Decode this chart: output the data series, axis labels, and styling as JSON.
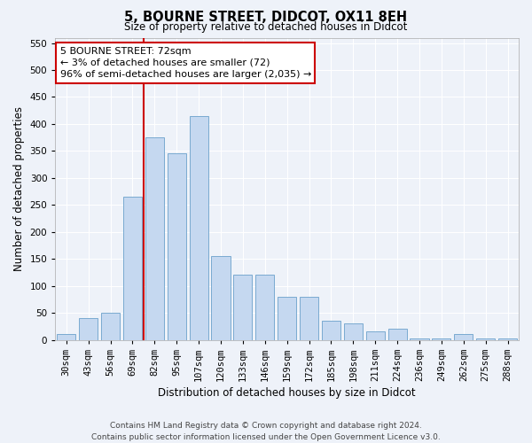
{
  "title": "5, BOURNE STREET, DIDCOT, OX11 8EH",
  "subtitle": "Size of property relative to detached houses in Didcot",
  "xlabel": "Distribution of detached houses by size in Didcot",
  "ylabel": "Number of detached properties",
  "categories": [
    "30sqm",
    "43sqm",
    "56sqm",
    "69sqm",
    "82sqm",
    "95sqm",
    "107sqm",
    "120sqm",
    "133sqm",
    "146sqm",
    "159sqm",
    "172sqm",
    "185sqm",
    "198sqm",
    "211sqm",
    "224sqm",
    "236sqm",
    "249sqm",
    "262sqm",
    "275sqm",
    "288sqm"
  ],
  "values": [
    10,
    40,
    50,
    265,
    375,
    345,
    415,
    155,
    120,
    120,
    80,
    80,
    35,
    30,
    15,
    20,
    3,
    3,
    10,
    2,
    2
  ],
  "bar_color": "#c5d8f0",
  "bar_edgecolor": "#7aaad0",
  "vline_x_index": 3.5,
  "vline_color": "#cc0000",
  "annotation_text": "5 BOURNE STREET: 72sqm\n← 3% of detached houses are smaller (72)\n96% of semi-detached houses are larger (2,035) →",
  "annotation_box_color": "#ffffff",
  "annotation_box_edgecolor": "#cc0000",
  "ylim": [
    0,
    560
  ],
  "yticks": [
    0,
    50,
    100,
    150,
    200,
    250,
    300,
    350,
    400,
    450,
    500,
    550
  ],
  "footer_line1": "Contains HM Land Registry data © Crown copyright and database right 2024.",
  "footer_line2": "Contains public sector information licensed under the Open Government Licence v3.0.",
  "background_color": "#eef2f9",
  "plot_bg_color": "#eef2f9",
  "title_fontsize": 10.5,
  "subtitle_fontsize": 8.5,
  "xlabel_fontsize": 8.5,
  "ylabel_fontsize": 8.5,
  "tick_fontsize": 7.5,
  "footer_fontsize": 6.5,
  "ann_fontsize": 8.0
}
